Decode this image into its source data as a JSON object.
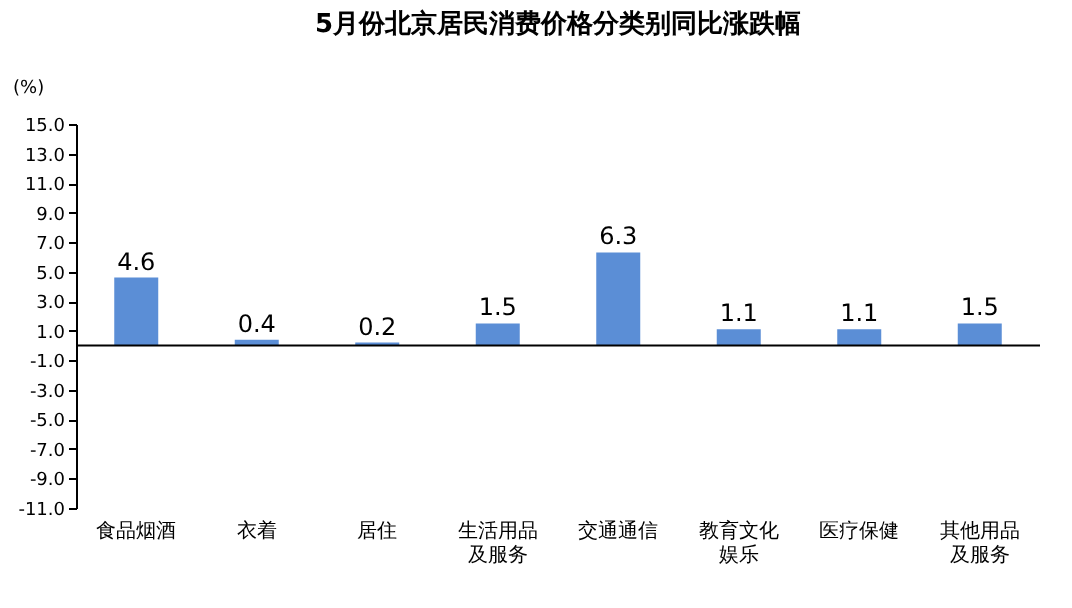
{
  "chart_data": {
    "type": "bar",
    "title": "5月份北京居民消费价格分类别同比涨跌幅",
    "ylabel": "(%)",
    "categories": [
      "食品烟酒",
      "衣着",
      "居住",
      "生活用品及服务",
      "交通通信",
      "教育文化娱乐",
      "医疗保健",
      "其他用品及服务"
    ],
    "values": [
      4.6,
      0.4,
      0.2,
      1.5,
      6.3,
      1.1,
      1.1,
      1.5
    ],
    "color": "#5b8ed6",
    "data_labels": true,
    "ylim": [
      -11,
      15
    ],
    "yticks": [
      {
        "value": -11,
        "label": "-11.0"
      },
      {
        "value": -9,
        "label": "-9.0"
      },
      {
        "value": -7,
        "label": "-7.0"
      },
      {
        "value": -5,
        "label": "-5.0"
      },
      {
        "value": -3,
        "label": "-3.0"
      },
      {
        "value": -1,
        "label": "-1.0"
      },
      {
        "value": 1,
        "label": "1.0"
      },
      {
        "value": 3,
        "label": "3.0"
      },
      {
        "value": 5,
        "label": "5.0"
      },
      {
        "value": 7,
        "label": "7.0"
      },
      {
        "value": 9,
        "label": "9.0"
      },
      {
        "value": 11,
        "label": "11.0"
      },
      {
        "value": 13,
        "label": "13.0"
      },
      {
        "value": 15,
        "label": "15.0"
      }
    ],
    "ref_lines": [
      {
        "axis": "y",
        "value": 0,
        "color": "#000000"
      }
    ],
    "grid": false
  }
}
